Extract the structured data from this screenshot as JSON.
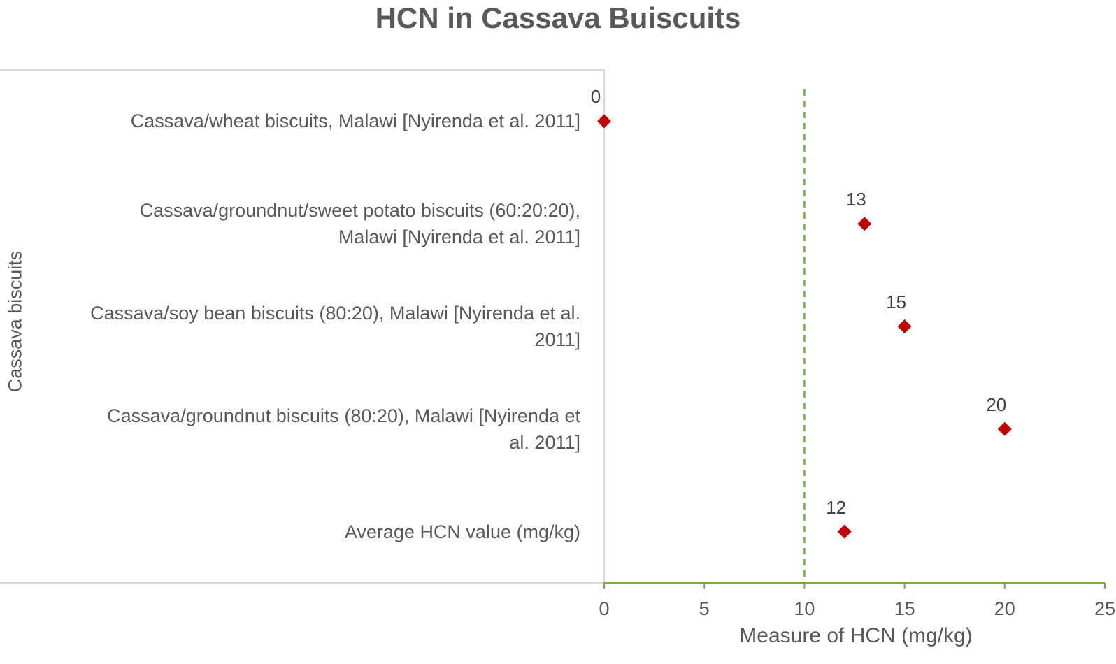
{
  "chart_data": {
    "type": "scatter",
    "title": "HCN in Cassava Buiscuits",
    "xlabel": "Measure of HCN (mg/kg)",
    "ylabel": "Cassava biscuits",
    "xlim": [
      0,
      25
    ],
    "x_ticks": [
      "0",
      "5",
      "10",
      "15",
      "20",
      "25"
    ],
    "reference_line": {
      "x": 10,
      "style": "dashed",
      "color": "#70ad47"
    },
    "marker": {
      "shape": "diamond",
      "color": "#c00000"
    },
    "categories": [
      [
        "Cassava/wheat biscuits, Malawi [Nyirenda et al. 2011]"
      ],
      [
        "Cassava/groundnut/sweet potato biscuits (60:20:20),",
        "Malawi [Nyirenda et al. 2011]"
      ],
      [
        "Cassava/soy bean biscuits (80:20), Malawi [Nyirenda et al.",
        "2011]"
      ],
      [
        "Cassava/groundnut biscuits (80:20), Malawi [Nyirenda et",
        "al. 2011]"
      ],
      [
        "Average HCN value (mg/kg)"
      ]
    ],
    "values": [
      0,
      13,
      15,
      20,
      12
    ],
    "data_labels": [
      "0",
      "13",
      "15",
      "20",
      "12"
    ],
    "grid": false,
    "legend": "none"
  }
}
